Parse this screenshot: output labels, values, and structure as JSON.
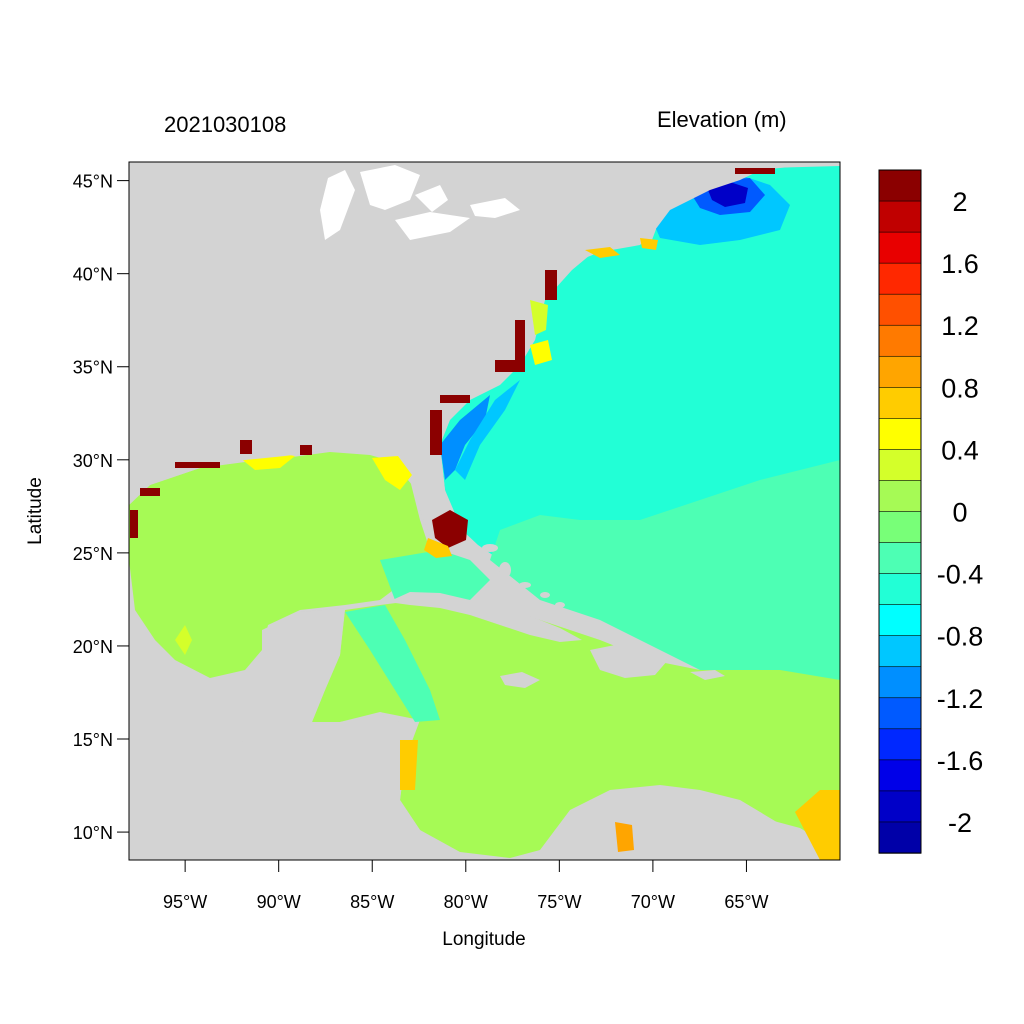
{
  "map": {
    "title_left": "2021030108",
    "title_right": "Elevation (m)",
    "x_label": "Longitude",
    "y_label": "Latitude",
    "lat_ticks": [
      "45°N",
      "40°N",
      "35°N",
      "30°N",
      "25°N",
      "20°N",
      "15°N",
      "10°N"
    ],
    "lon_ticks": [
      "95°W",
      "90°W",
      "85°W",
      "80°W",
      "75°W",
      "70°W",
      "65°W"
    ],
    "lat_tick_values": [
      45,
      40,
      35,
      30,
      25,
      20,
      15,
      10
    ],
    "lon_tick_values": [
      -95,
      -90,
      -85,
      -80,
      -75,
      -70,
      -65
    ],
    "lon_range": [
      -98,
      -60
    ],
    "lat_range": [
      8.5,
      46
    ],
    "colors": {
      "land": "#d3d3d3",
      "inland_water": "#ffffff",
      "gulf_caribbean": "#a6fa55",
      "atlantic": "#22ffd6",
      "shelf_transition": "#4dffb4",
      "shelf_low": "#00c7ff",
      "deep_low": "#0000c8"
    }
  },
  "colorbar": {
    "labels": [
      "2",
      "1.6",
      "1.2",
      "0.8",
      "0.4",
      "0",
      "-0.4",
      "-0.8",
      "-1.2",
      "-1.6",
      "-2"
    ],
    "colors": [
      "#8b0000",
      "#c00000",
      "#e80000",
      "#ff2800",
      "#ff5000",
      "#ff7a00",
      "#ffa500",
      "#ffcc00",
      "#ffff00",
      "#d4ff2a",
      "#a6fa55",
      "#78ff78",
      "#4dffb4",
      "#22ffd6",
      "#00ffff",
      "#00c7ff",
      "#008fff",
      "#005aff",
      "#0028ff",
      "#0000e8",
      "#0000c8",
      "#0000a8"
    ],
    "range": [
      -2.2,
      2.2
    ]
  }
}
